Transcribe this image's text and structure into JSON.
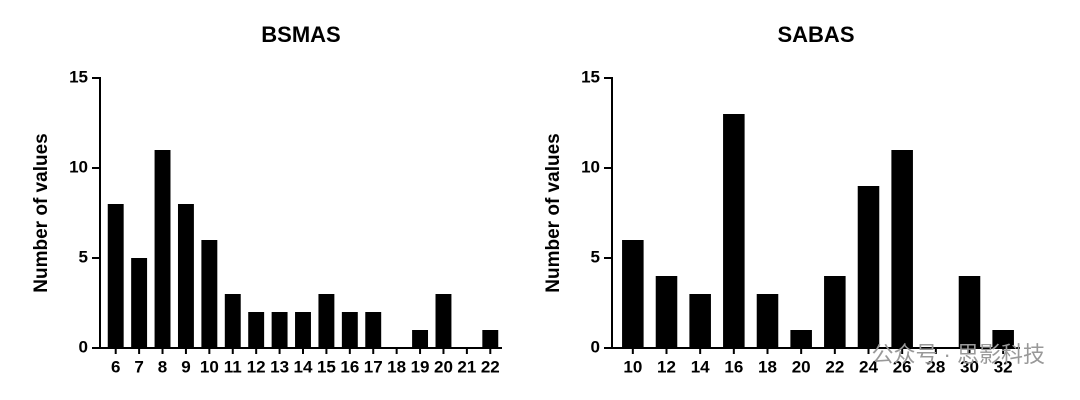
{
  "chart_data": [
    {
      "type": "bar",
      "title": "BSMAS",
      "y_label": "Number of values",
      "categories": [
        "6",
        "7",
        "8",
        "9",
        "10",
        "11",
        "12",
        "13",
        "14",
        "15",
        "16",
        "17",
        "18",
        "19",
        "20",
        "21",
        "22"
      ],
      "values": [
        8,
        5,
        11,
        8,
        6,
        3,
        2,
        2,
        2,
        3,
        2,
        2,
        0,
        1,
        3,
        0,
        1
      ],
      "color": "#000000",
      "ylim": [
        0,
        15
      ],
      "yticks": [
        0,
        5,
        10,
        15
      ]
    },
    {
      "type": "bar",
      "title": "SABAS",
      "y_label": "Number of values",
      "categories": [
        "10",
        "12",
        "14",
        "16",
        "18",
        "20",
        "22",
        "24",
        "26",
        "28",
        "30",
        "32"
      ],
      "values": [
        6,
        4,
        3,
        13,
        3,
        1,
        4,
        9,
        11,
        0,
        4,
        1
      ],
      "color": "#000000",
      "ylim": [
        0,
        15
      ],
      "yticks": [
        0,
        5,
        10,
        15
      ]
    }
  ],
  "watermark": "公众号 · 思影科技"
}
